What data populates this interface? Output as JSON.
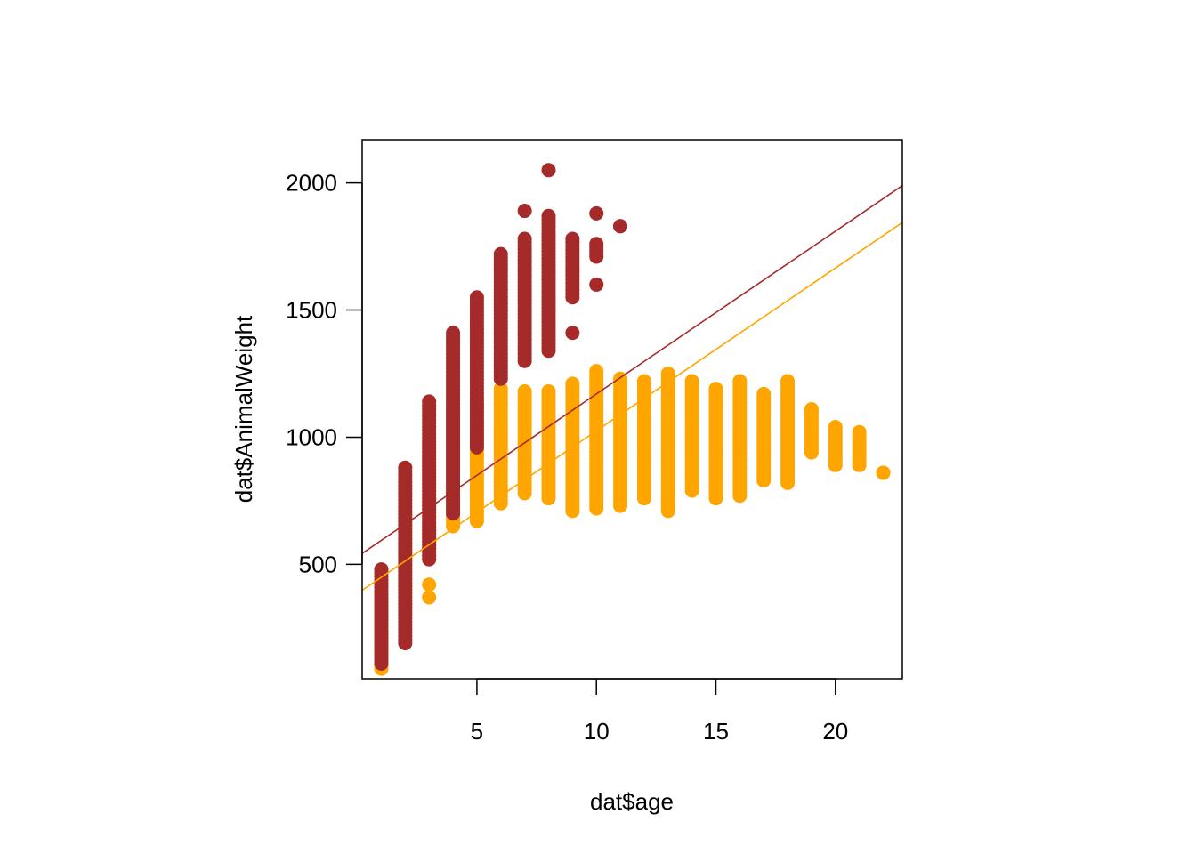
{
  "chart_data": {
    "type": "scatter",
    "title": "",
    "xlabel": "dat$age",
    "ylabel": "dat$AnimalWeight",
    "xlim": [
      0.2,
      22.8
    ],
    "ylim": [
      50,
      2170
    ],
    "xticks": [
      5,
      10,
      15,
      20
    ],
    "yticks": [
      500,
      1000,
      1500,
      2000
    ],
    "grid": false,
    "legend": "none",
    "series": [
      {
        "color": "#a52a2a",
        "columns": [
          {
            "x": 1,
            "min": 110,
            "max": 480
          },
          {
            "x": 2,
            "min": 190,
            "max": 880
          },
          {
            "x": 3,
            "min": 520,
            "max": 1140
          },
          {
            "x": 4,
            "min": 700,
            "max": 1410
          },
          {
            "x": 5,
            "min": 960,
            "max": 1550
          },
          {
            "x": 6,
            "min": 1230,
            "max": 1720
          },
          {
            "x": 7,
            "min": 1300,
            "max": 1780
          },
          {
            "x": 8,
            "min": 1340,
            "max": 1870
          },
          {
            "x": 9,
            "min": 1550,
            "max": 1780
          },
          {
            "x": 10,
            "min": 1710,
            "max": 1760
          },
          {
            "x": 11,
            "min": 1830,
            "max": 1830
          }
        ],
        "extra_points": [
          {
            "x": 7,
            "y": 1890
          },
          {
            "x": 8,
            "y": 2050
          },
          {
            "x": 9,
            "y": 1410
          },
          {
            "x": 10,
            "y": 1880
          },
          {
            "x": 10,
            "y": 1600
          }
        ],
        "fit": {
          "intercept": 530,
          "slope": 64
        }
      },
      {
        "color": "#ffa500",
        "columns": [
          {
            "x": 1,
            "min": 90,
            "max": 380
          },
          {
            "x": 2,
            "min": 300,
            "max": 700
          },
          {
            "x": 3,
            "min": 520,
            "max": 980
          },
          {
            "x": 4,
            "min": 650,
            "max": 1120
          },
          {
            "x": 5,
            "min": 670,
            "max": 1130
          },
          {
            "x": 6,
            "min": 740,
            "max": 1190
          },
          {
            "x": 7,
            "min": 780,
            "max": 1180
          },
          {
            "x": 8,
            "min": 760,
            "max": 1180
          },
          {
            "x": 9,
            "min": 710,
            "max": 1210
          },
          {
            "x": 10,
            "min": 720,
            "max": 1260
          },
          {
            "x": 11,
            "min": 730,
            "max": 1230
          },
          {
            "x": 12,
            "min": 760,
            "max": 1220
          },
          {
            "x": 13,
            "min": 710,
            "max": 1250
          },
          {
            "x": 14,
            "min": 790,
            "max": 1220
          },
          {
            "x": 15,
            "min": 760,
            "max": 1190
          },
          {
            "x": 16,
            "min": 770,
            "max": 1220
          },
          {
            "x": 17,
            "min": 830,
            "max": 1170
          },
          {
            "x": 18,
            "min": 820,
            "max": 1220
          },
          {
            "x": 19,
            "min": 940,
            "max": 1110
          },
          {
            "x": 20,
            "min": 890,
            "max": 1040
          },
          {
            "x": 21,
            "min": 890,
            "max": 1020
          },
          {
            "x": 22,
            "min": 860,
            "max": 860
          }
        ],
        "extra_points": [
          {
            "x": 3,
            "y": 420
          },
          {
            "x": 3,
            "y": 370
          },
          {
            "x": 4,
            "y": 1120
          },
          {
            "x": 13,
            "y": 740
          }
        ],
        "fit": {
          "intercept": 385,
          "slope": 64
        }
      }
    ]
  }
}
